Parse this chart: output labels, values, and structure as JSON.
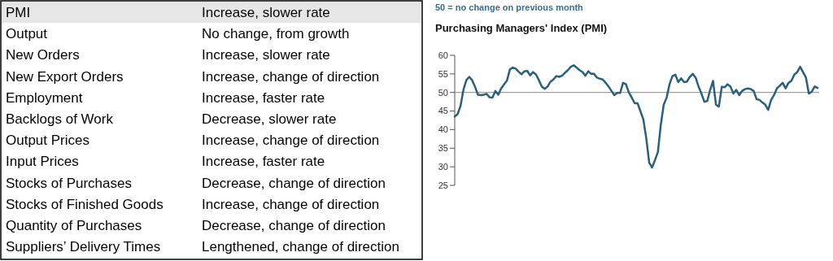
{
  "chart_data": [
    {
      "type": "other",
      "categories": [
        "PMI",
        "Output",
        "New Orders",
        "New Export Orders",
        "Employment",
        "Backlogs of Work",
        "Output Prices",
        "Input Prices",
        "Stocks of Purchases",
        "Stocks of Finished Goods",
        "Quantity of Purchases",
        "Suppliers’ Delivery Times"
      ],
      "value_labels": [
        "Increase, slower rate",
        "No change, from growth",
        "Increase, slower rate",
        "Increase, change of direction",
        "Increase, faster rate",
        "Decrease, slower rate",
        "Increase, change of direction",
        "Increase, faster rate",
        "Decrease, change of direction",
        "Increase, change of direction",
        "Decrease, change of direction",
        "Lengthened, change of direction"
      ]
    },
    {
      "type": "line",
      "title": "Purchasing Managers' Index (PMI)",
      "annotations": [
        "50 =  no change on previous month"
      ],
      "categories": [
        null,
        null,
        null,
        null,
        null,
        null,
        null,
        null,
        null,
        null,
        null,
        null,
        null,
        null,
        null,
        null,
        null,
        null,
        null,
        null,
        null,
        null,
        null,
        null,
        null,
        null,
        null,
        null,
        null,
        null,
        null,
        null,
        null,
        null,
        null,
        null,
        null,
        null,
        null,
        null,
        null,
        null,
        null,
        null,
        null,
        null,
        null,
        null,
        null,
        null,
        null,
        null,
        null,
        null,
        null,
        null,
        null,
        null,
        null,
        null,
        null,
        null,
        null,
        null,
        null,
        null,
        null,
        null,
        null,
        null,
        null,
        null,
        null,
        null,
        null,
        null,
        null,
        null,
        null,
        null,
        null,
        null,
        null,
        null,
        null,
        null,
        null,
        null,
        null,
        null,
        null,
        null,
        null,
        null,
        null,
        null,
        null,
        null,
        null,
        null,
        null,
        null,
        null,
        null,
        null,
        null,
        null,
        null,
        null,
        null,
        null,
        null,
        null,
        null,
        null,
        null,
        null,
        null,
        null,
        null,
        null,
        null,
        null,
        null,
        null,
        null
      ],
      "series": [
        {
          "color": "#2a5f7e",
          "values": [
            43.5,
            44.2,
            46.4,
            50.7,
            53.3,
            54.2,
            53.3,
            51.5,
            49.4,
            49.3,
            49.4,
            49.6,
            48.7,
            48.6,
            50.4,
            49.4,
            51.1,
            52.2,
            53.2,
            56.2,
            56.7,
            56.4,
            55.6,
            54.9,
            55.7,
            55.8,
            54.6,
            55.5,
            54.8,
            53.3,
            51.6,
            51.0,
            51.6,
            52.9,
            53.5,
            54.4,
            54.2,
            54.5,
            55.3,
            56.0,
            56.9,
            57.3,
            56.7,
            56.0,
            55.5,
            54.5,
            55.7,
            55.0,
            55.0,
            54.0,
            53.7,
            53.5,
            52.6,
            51.6,
            50.4,
            49.3,
            49.9,
            49.9,
            52.6,
            52.2,
            50.0,
            48.6,
            47.1,
            47.1,
            44.9,
            42.7,
            37.6,
            31.1,
            29.8,
            31.8,
            34.0,
            41.3,
            46.7,
            48.6,
            52.2,
            54.4,
            54.8,
            52.8,
            53.8,
            52.8,
            52.9,
            54.2,
            55.0,
            54.0,
            51.6,
            49.7,
            47.5,
            47.7,
            50.7,
            53.1,
            46.7,
            46.2,
            51.5,
            51.4,
            52.2,
            51.6,
            49.7,
            50.7,
            49.3,
            50.4,
            50.9,
            51.1,
            50.9,
            50.4,
            48.2,
            48.0,
            47.3,
            46.7,
            45.3,
            48.0,
            49.3,
            51.1,
            51.8,
            52.6,
            51.1,
            52.6,
            53.1,
            54.8,
            55.5,
            56.9,
            55.5,
            54.0,
            49.7,
            50.2,
            51.6,
            51.2
          ]
        }
      ],
      "ylim": [
        25,
        60
      ],
      "yticks": [
        25,
        30,
        35,
        40,
        45,
        50,
        55,
        60
      ],
      "ref_lines": [
        {
          "axis": "y",
          "value": 50,
          "color": "#888888"
        }
      ],
      "line_style": "solid",
      "marker": "none"
    }
  ]
}
